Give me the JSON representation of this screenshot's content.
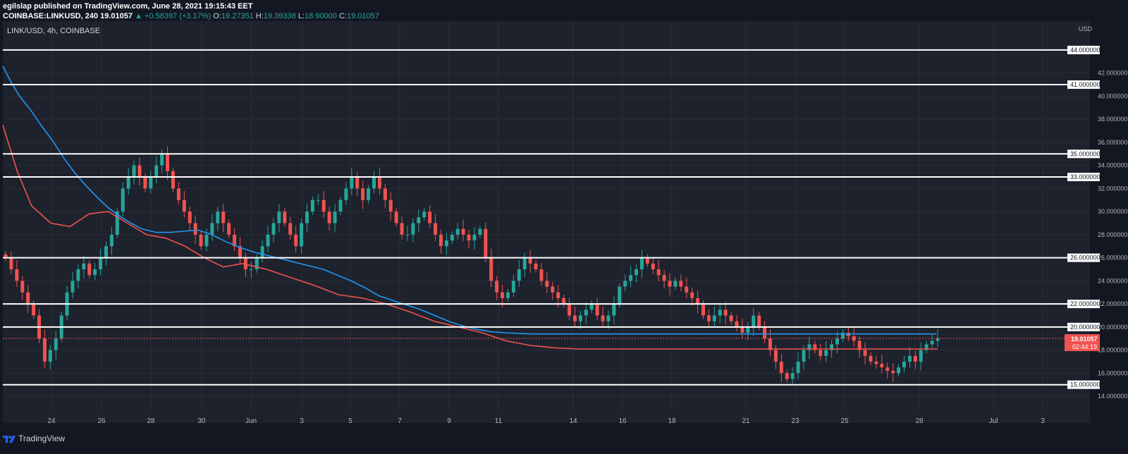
{
  "header": {
    "line1": "egilslap published on TradingView.com, June 28, 2021 19:15:43 EET",
    "symbol": "COINBASE:LINKUSD, 240",
    "last": "19.01057",
    "change": "▲ +0.58397 (+3.17%)",
    "o_label": "O:",
    "o_val": "19.27351",
    "h_label": "H:",
    "h_val": "19.39338",
    "l_label": "L:",
    "l_val": "18.90000",
    "c_label": "C:",
    "c_val": "19.01057"
  },
  "chart_label": "LINK/USD, 4h, COINBASE",
  "footer": {
    "brand": "TradingView"
  },
  "chart_data": {
    "type": "line",
    "currency": "USD",
    "ylim": [
      12.6,
      46.5
    ],
    "x_ticks": [
      "24",
      "26",
      "28",
      "30",
      "Jun",
      "3",
      "5",
      "7",
      "9",
      "11",
      "14",
      "16",
      "18",
      "21",
      "23",
      "25",
      "28",
      "Jul",
      "3"
    ],
    "y_ticks": [
      "14.000000",
      "16.000000",
      "18.000000",
      "20.000000",
      "22.000000",
      "24.000000",
      "26.000000",
      "28.000000",
      "30.000000",
      "32.000000",
      "34.000000",
      "36.000000",
      "38.000000",
      "40.000000",
      "42.000000"
    ],
    "level_labels": [
      "44.000000",
      "41.000000",
      "35.000000",
      "33.000000",
      "26.000000",
      "22.000000",
      "20.000000",
      "15.000000"
    ],
    "levels": [
      44,
      41,
      35,
      33,
      26,
      22,
      20,
      15
    ],
    "current_price": 19.01057,
    "current_price_label": "19.01057",
    "countdown": "02:44:19",
    "colors": {
      "up": "#26a69a",
      "down": "#ef5350",
      "ma_fast": "#ef5350",
      "ma_slow": "#2196f3",
      "level": "#ffffff"
    },
    "series": [
      {
        "type": "line",
        "color": "#2196f3",
        "x": [
          0,
          3,
          6,
          10,
          14,
          18,
          22,
          26,
          30,
          34,
          38,
          42,
          46,
          50,
          55,
          60,
          65,
          70,
          75,
          80,
          85,
          90,
          95,
          100,
          105,
          110,
          115,
          120,
          125,
          130,
          135,
          140,
          145,
          150,
          155,
          160,
          165,
          170,
          175,
          180,
          185,
          190,
          195,
          200,
          205,
          210,
          215,
          220,
          225,
          230,
          235,
          240,
          245,
          250,
          255,
          260,
          265,
          270,
          275,
          280,
          285,
          290,
          295,
          300,
          305,
          310,
          315,
          320,
          325,
          330,
          335
        ],
        "values": [
          42.6,
          41.2,
          40.0,
          38.8,
          37.4,
          36.1,
          34.6,
          33.3,
          32.2,
          31.2,
          30.3,
          29.6,
          29.0,
          28.5,
          28.2,
          28.2,
          28.3,
          28.4,
          28.0,
          27.4,
          26.9,
          26.5,
          26.2,
          25.9,
          25.6,
          25.3,
          25.0,
          24.5,
          24.0,
          23.4,
          22.7,
          22.3,
          21.9,
          21.5,
          21.0,
          20.5,
          20.1,
          19.8,
          19.6,
          19.5,
          19.45,
          19.4,
          19.4,
          19.4,
          19.4,
          19.4,
          19.4,
          19.4,
          19.4,
          19.4,
          19.4,
          19.4,
          19.4,
          19.4,
          19.4,
          19.4,
          19.4,
          19.4,
          19.4,
          19.4,
          19.4,
          19.4,
          19.4,
          19.4,
          19.4,
          19.4,
          19.4,
          19.4,
          19.4,
          19.4,
          19.4
        ]
      },
      {
        "type": "line",
        "color": "#ef5350",
        "x": [
          0,
          3,
          6,
          10,
          14,
          18,
          22,
          26,
          30,
          34,
          38,
          42,
          46,
          50,
          55,
          60,
          65,
          70,
          75,
          80,
          85,
          90,
          95,
          100,
          105,
          110,
          115,
          120,
          125,
          130,
          135,
          140,
          145,
          150,
          155,
          160,
          165,
          170,
          175,
          180,
          185,
          190,
          195
        ],
        "values": [
          37.5,
          33.5,
          30.5,
          29.0,
          28.7,
          29.8,
          30.0,
          29.0,
          28.0,
          27.7,
          27.0,
          26.0,
          25.2,
          25.5,
          25.0,
          24.3,
          23.6,
          22.8,
          22.5,
          22.0,
          21.3,
          20.5,
          20.0,
          19.5,
          18.8,
          18.4,
          18.2,
          18.1,
          18.1,
          18.1,
          18.1,
          18.1,
          18.1,
          18.1,
          18.1,
          18.1,
          18.1,
          18.1,
          18.1,
          18.1,
          18.1,
          18.1,
          18.1
        ]
      }
    ]
  }
}
